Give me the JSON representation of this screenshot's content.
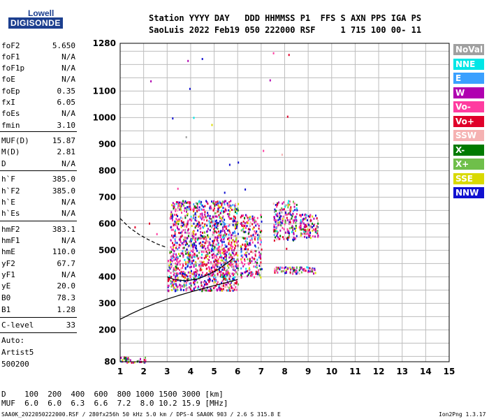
{
  "logo": {
    "line1": "Lowell",
    "line2": "DIGISONDE"
  },
  "header": {
    "line1": "Station YYYY DAY   DDD HHMMSS P1  FFS S AXN PPS IGA PS",
    "line2": "SaoLuis 2022 Feb19 050 222000 RSF     1 715 100 00- 11"
  },
  "params": [
    {
      "name": "foF2",
      "value": "5.650"
    },
    {
      "name": "foF1",
      "value": "N/A"
    },
    {
      "name": "foF1p",
      "value": "N/A"
    },
    {
      "name": "foE",
      "value": "N/A"
    },
    {
      "name": "foEp",
      "value": "0.35"
    },
    {
      "name": "fxI",
      "value": "6.05"
    },
    {
      "name": "foEs",
      "value": "N/A"
    },
    {
      "name": "fmin",
      "value": "3.10"
    },
    {
      "name": "MUF(D)",
      "value": "15.87"
    },
    {
      "name": "M(D)",
      "value": "2.81"
    },
    {
      "name": "D",
      "value": "N/A"
    },
    {
      "name": "h`F",
      "value": "385.0"
    },
    {
      "name": "h`F2",
      "value": "385.0"
    },
    {
      "name": "h`E",
      "value": "N/A"
    },
    {
      "name": "h`Es",
      "value": "N/A"
    },
    {
      "name": "hmF2",
      "value": "383.1"
    },
    {
      "name": "hmF1",
      "value": "N/A"
    },
    {
      "name": "hmE",
      "value": "110.0"
    },
    {
      "name": "yF2",
      "value": "67.7"
    },
    {
      "name": "yF1",
      "value": "N/A"
    },
    {
      "name": "yE",
      "value": "20.0"
    },
    {
      "name": "B0",
      "value": "78.3"
    },
    {
      "name": "B1",
      "value": "1.28"
    },
    {
      "name": "C-level",
      "value": "33"
    }
  ],
  "auto": {
    "line1": "Auto:",
    "line2": "Artist5",
    "line3": "500200"
  },
  "legend": [
    {
      "label": "NoVal",
      "color": "#a0a0a0"
    },
    {
      "label": "NNE",
      "color": "#00e6e6"
    },
    {
      "label": "E",
      "color": "#3aa0ff"
    },
    {
      "label": "W",
      "color": "#b000b0"
    },
    {
      "label": "Vo-",
      "color": "#ff3ca0"
    },
    {
      "label": "Vo+",
      "color": "#e0002a"
    },
    {
      "label": "SSW",
      "color": "#f5b2b2"
    },
    {
      "label": "X-",
      "color": "#007a00"
    },
    {
      "label": "X+",
      "color": "#6fbf4a"
    },
    {
      "label": "SSE",
      "color": "#d9d900"
    },
    {
      "label": "NNW",
      "color": "#1010d0"
    }
  ],
  "footer": {
    "line1": "D    100  200  400  600  800 1000 1500 3000 [km]",
    "line2": "MUF  6.0  6.0  6.3  6.6  7.2  8.0 10.2 15.9 [MHz]",
    "line3": "SAA0K_2022050222000.RSF / 280fx256h 50 kHz 5.0 km / DPS-4 SAA0K 903 / 2.6 S 315.8 E",
    "version": "Ion2Png 1.3.17"
  },
  "chart_data": {
    "type": "scatter",
    "title": "",
    "xlabel": "",
    "ylabel": "",
    "xlim": [
      1,
      15
    ],
    "ylim": [
      80,
      1280
    ],
    "x_ticks": [
      1,
      2,
      3,
      4,
      5,
      6,
      7,
      8,
      9,
      10,
      11,
      12,
      13,
      14,
      15
    ],
    "y_ticks": [
      80,
      200,
      300,
      400,
      500,
      600,
      700,
      800,
      900,
      1000,
      1100,
      1280
    ],
    "grid": true,
    "clusters": [
      {
        "name": "F-trace low",
        "xrange": [
          3.0,
          6.0
        ],
        "yrange": [
          350,
          500
        ],
        "density": 700
      },
      {
        "name": "F-trace high",
        "xrange": [
          3.1,
          6.0
        ],
        "yrange": [
          500,
          690
        ],
        "density": 700
      },
      {
        "name": "F-trace 6-7",
        "xrange": [
          6.1,
          7.0
        ],
        "yrange": [
          400,
          640
        ],
        "density": 220
      },
      {
        "name": "F-trace 7.5-8.4",
        "xrange": [
          7.5,
          8.5
        ],
        "yrange": [
          540,
          690
        ],
        "density": 180
      },
      {
        "name": "F-trace 8.5-9.4",
        "xrange": [
          8.6,
          9.4
        ],
        "yrange": [
          550,
          640
        ],
        "density": 110
      },
      {
        "name": "low 7.5-9.2",
        "xrange": [
          7.5,
          9.3
        ],
        "yrange": [
          415,
          440
        ],
        "density": 80
      },
      {
        "name": "E low",
        "xrange": [
          1.0,
          2.1
        ],
        "yrange": [
          80,
          100
        ],
        "density": 40
      }
    ],
    "profile_solid": {
      "x": [
        1.0,
        1.5,
        2.0,
        2.5,
        3.0,
        3.5,
        4.0,
        4.5,
        5.0,
        5.5,
        6.0
      ],
      "y": [
        240,
        262,
        282,
        300,
        316,
        330,
        343,
        355,
        367,
        378,
        390
      ]
    },
    "profile_dashed": {
      "x": [
        1.0,
        1.4,
        1.8,
        2.2,
        2.6,
        3.0
      ],
      "y": [
        620,
        585,
        560,
        540,
        523,
        510
      ]
    },
    "profile_virtual": {
      "x": [
        3.0,
        3.3,
        3.8,
        4.3,
        4.8,
        5.2,
        5.6,
        5.8
      ],
      "y": [
        400,
        390,
        385,
        392,
        410,
        430,
        455,
        470
      ]
    }
  }
}
